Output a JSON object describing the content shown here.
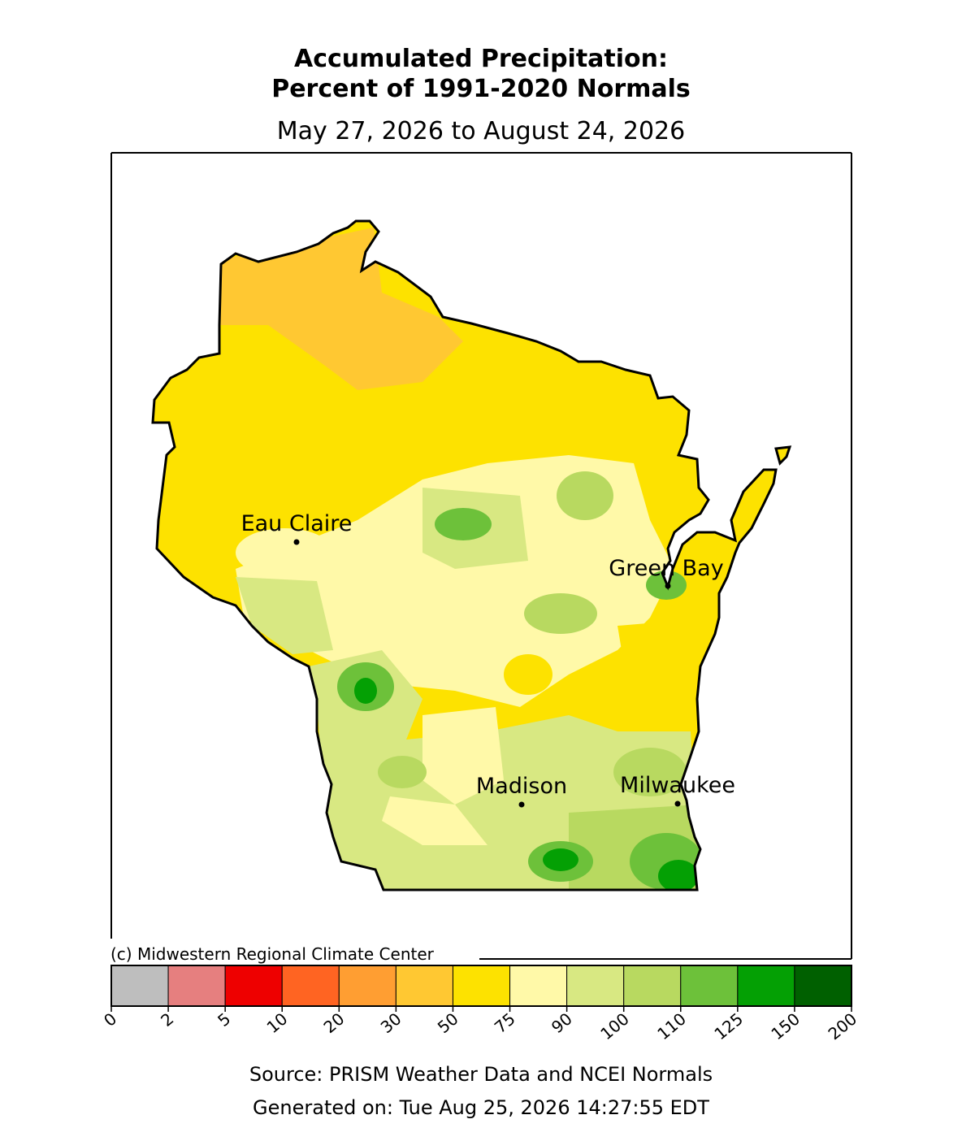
{
  "title": [
    "Accumulated Precipitation:",
    "Percent of 1991-2020 Normals"
  ],
  "subtitle": "May 27, 2026 to August 24, 2026",
  "cities": [
    "Eau Claire",
    "Green Bay",
    "Madison",
    "Milwaukee"
  ],
  "credit": "(c) Midwestern Regional Climate Center",
  "legend": {
    "ticks": [
      0,
      2,
      5,
      10,
      20,
      30,
      50,
      75,
      90,
      100,
      110,
      125,
      150,
      200
    ],
    "colors": [
      "#bebebe",
      "#e67f7f",
      "#ee0000",
      "#ff6422",
      "#ff9e32",
      "#ffc832",
      "#fde200",
      "#fff9a8",
      "#d8e882",
      "#b8d960",
      "#6dc13a",
      "#04a004",
      "#006000"
    ]
  },
  "source": "Source: PRISM Weather Data and NCEI Normals",
  "generated": "Generated on: Tue Aug 25, 2026 14:27:55 EDT"
}
